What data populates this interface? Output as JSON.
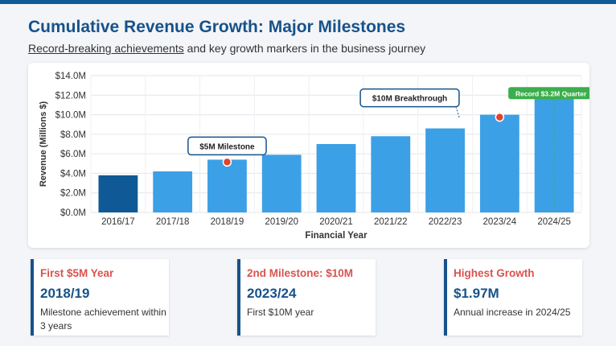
{
  "header": {
    "title": "Cumulative Revenue Growth: Major Milestones",
    "subtitle_link": "Record-breaking achievements",
    "subtitle_rest": " and key growth markers in the business journey"
  },
  "colors": {
    "bar": "#3ba0e6",
    "bar_highlight": "#0f5a96",
    "milestone_dot": "#e0452c",
    "record_badge": "#3cae4c",
    "accent": "#17528a",
    "stat_heading": "#d9534f"
  },
  "chart_data": {
    "type": "bar",
    "categories": [
      "2016/17",
      "2017/18",
      "2018/19",
      "2019/20",
      "2020/21",
      "2021/22",
      "2022/23",
      "2023/24",
      "2024/25"
    ],
    "values": [
      3.8,
      4.2,
      5.4,
      5.9,
      7.0,
      7.8,
      8.6,
      10.0,
      12.0
    ],
    "highlight_index": 0,
    "xlabel": "Financial Year",
    "ylabel": "Revenue (Millions $)",
    "ylim": [
      0,
      14
    ],
    "yticks": [
      0,
      2,
      4,
      6,
      8,
      10,
      12,
      14
    ],
    "ytick_labels": [
      "$0.0M",
      "$2.0M",
      "$4.0M",
      "$6.0M",
      "$8.0M",
      "$10.0M",
      "$12.0M",
      "$14.0M"
    ],
    "grid": true,
    "annotations": [
      {
        "label": "$5M Milestone",
        "category_index": 2,
        "style": "callout-box",
        "marker": true
      },
      {
        "label": "$10M Breakthrough",
        "category_index": 7,
        "style": "callout-box",
        "marker": true
      },
      {
        "label": "Record $3.2M Quarter",
        "category_index": 8,
        "style": "badge",
        "marker": false
      }
    ]
  },
  "stats": [
    {
      "heading": "First $5M Year",
      "value": "2018/19",
      "desc": "Milestone achievement within 3 years"
    },
    {
      "heading": "2nd Milestone: $10M",
      "value": "2023/24",
      "desc": "First $10M year"
    },
    {
      "heading": "Highest Growth",
      "value": "$1.97M",
      "desc": "Annual increase in 2024/25"
    }
  ]
}
